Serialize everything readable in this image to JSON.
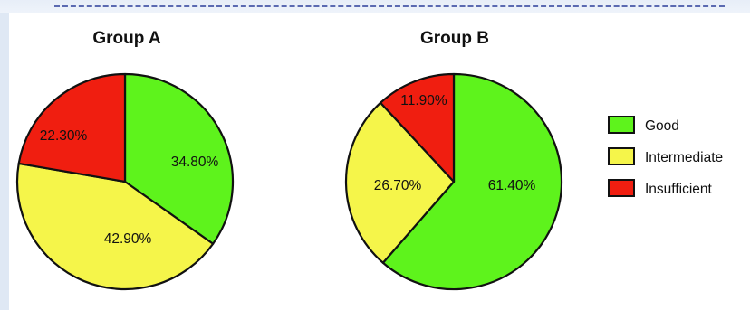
{
  "chart_data": [
    {
      "type": "pie",
      "title": "Group A",
      "categories": [
        "Good",
        "Intermediate",
        "Insufficient"
      ],
      "values": [
        34.8,
        42.9,
        22.3
      ],
      "labels": [
        "34.80%",
        "42.90%",
        "22.30%"
      ],
      "colors": [
        "#5ef31c",
        "#f5f54a",
        "#f01e10"
      ]
    },
    {
      "type": "pie",
      "title": "Group B",
      "categories": [
        "Good",
        "Intermediate",
        "Insufficient"
      ],
      "values": [
        61.4,
        26.7,
        11.9
      ],
      "labels": [
        "61.40%",
        "26.70%",
        "11.90%"
      ],
      "colors": [
        "#5ef31c",
        "#f5f54a",
        "#f01e10"
      ]
    }
  ],
  "legend": {
    "placement": "right",
    "items": [
      {
        "label": "Good",
        "color": "#5ef31c"
      },
      {
        "label": "Intermediate",
        "color": "#f5f54a"
      },
      {
        "label": "Insufficient",
        "color": "#f01e10"
      }
    ]
  }
}
